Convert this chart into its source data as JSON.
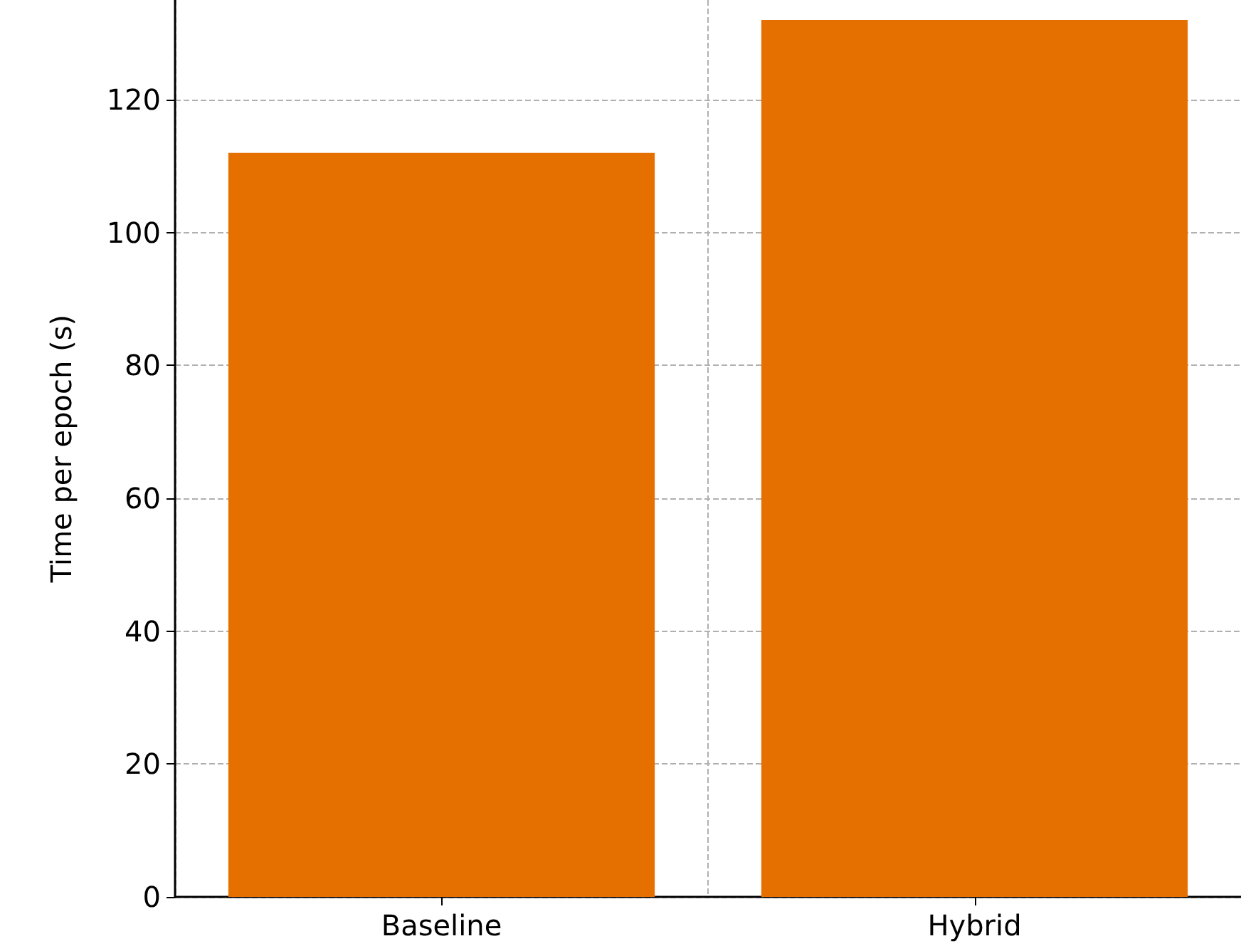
{
  "chart_data": {
    "type": "bar",
    "ylabel": "Time per epoch (s)",
    "categories": [
      "Baseline",
      "Hybrid"
    ],
    "values": [
      112,
      132
    ],
    "color": "#e57000",
    "ylim": [
      0,
      135
    ],
    "yticks": [
      0,
      20,
      40,
      60,
      80,
      100,
      120
    ],
    "grid": true
  }
}
